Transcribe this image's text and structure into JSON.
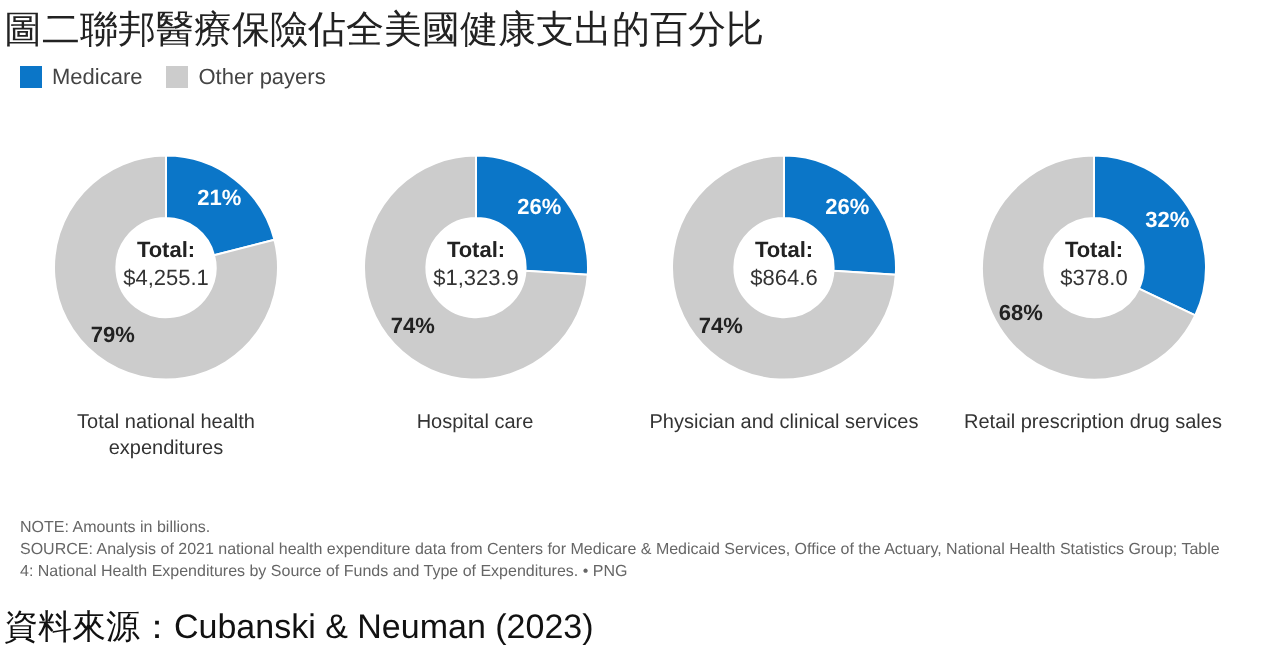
{
  "chart_data": [
    {
      "type": "donut",
      "title": "圖二聯邦醫療保險佔全美國健康支出的百分比",
      "xlabel": "Total national health expenditures",
      "legend": "top left",
      "categories": [
        "Medicare",
        "Other payers"
      ],
      "values": [
        21,
        79
      ],
      "value_labels": [
        "21%",
        "79%"
      ],
      "colors": [
        "#0b76c8",
        "#cccccc"
      ],
      "annotations": [
        "Total:",
        "$4,255.1",
        "NOTE: Amounts in billions.",
        "SOURCE: Analysis of 2021 national health expenditure data from Centers for Medicare & Medicaid Services, Office of the Actuary, National Health Statistics Group; Table 4: National Health Expenditures by Source of Funds and Type of Expenditures. • PNG",
        "資料來源：Cubanski & Neuman (2023)"
      ]
    },
    {
      "type": "donut",
      "xlabel": "Hospital care",
      "categories": [
        null,
        null
      ],
      "values": [
        26,
        74
      ],
      "value_labels": [
        "26%",
        "74%"
      ],
      "colors": [
        "#0b76c8",
        "#cccccc"
      ],
      "annotations": [
        "Total:",
        "$1,323.9"
      ]
    },
    {
      "type": "donut",
      "xlabel": "Physician and clinical services",
      "categories": [
        null,
        null
      ],
      "values": [
        26,
        74
      ],
      "value_labels": [
        "26%",
        "74%"
      ],
      "colors": [
        "#0b76c8",
        "#cccccc"
      ],
      "annotations": [
        "Total:",
        "$864.6"
      ]
    },
    {
      "type": "donut",
      "xlabel": "Retail prescription drug sales",
      "categories": [
        null,
        null
      ],
      "values": [
        32,
        68
      ],
      "value_labels": [
        "32%",
        "68%"
      ],
      "colors": [
        "#0b76c8",
        "#cccccc"
      ],
      "annotations": [
        "Total:",
        "$378.0"
      ]
    }
  ]
}
